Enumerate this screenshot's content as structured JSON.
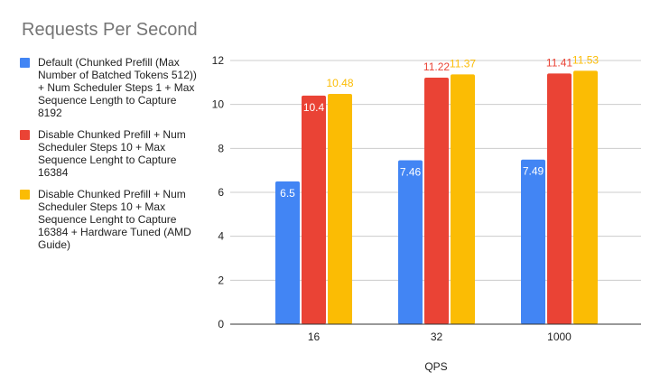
{
  "chart_data": {
    "type": "bar",
    "title": "Requests Per Second",
    "xlabel": "QPS",
    "ylabel": "",
    "categories": [
      "16",
      "32",
      "1000"
    ],
    "ylim": [
      0,
      12
    ],
    "yticks": [
      0,
      2,
      4,
      6,
      8,
      10,
      12
    ],
    "grid": true,
    "legend_position": "left",
    "series": [
      {
        "name": "Default (Chunked Prefill (Max Number of Batched Tokens 512)) + Num Scheduler Steps 1 + Max Sequence Length to Capture 8192",
        "color": "#4285f4",
        "values": [
          6.5,
          7.46,
          7.49
        ]
      },
      {
        "name": "Disable Chunked Prefill + Num Scheduler Steps 10 + Max Sequence Lenght to Capture 16384",
        "color": "#ea4335",
        "values": [
          10.4,
          11.22,
          11.41
        ]
      },
      {
        "name": "Disable Chunked Prefill + Num Scheduler Steps 10 + Max Sequence Lenght to Capture 16384 + Hardware Tuned (AMD Guide)",
        "color": "#fbbc04",
        "values": [
          10.48,
          11.37,
          11.53
        ]
      }
    ]
  }
}
